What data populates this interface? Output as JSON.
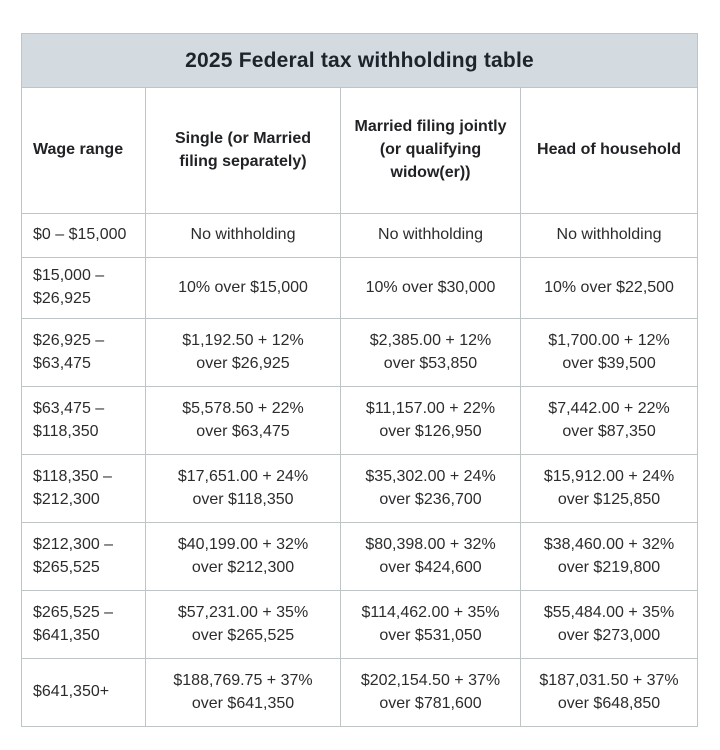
{
  "title": "2025 Federal tax withholding table",
  "colors": {
    "title_band_bg": "#d3dbe0",
    "cell_border": "#bfc4c7",
    "text": "#2a2c2e",
    "page_bg": "#ffffff"
  },
  "chart_data": {
    "type": "table",
    "title": "2025 Federal tax withholding table",
    "columns": [
      "Wage range",
      "Single (or Married\nfiling separately)",
      "Married filing jointly\n(or qualifying\nwidow(er))",
      "Head of household"
    ],
    "rows": [
      [
        "$0 – $15,000",
        "No withholding",
        "No withholding",
        "No withholding"
      ],
      [
        "$15,000 –\n$26,925",
        "10% over $15,000",
        "10% over $30,000",
        "10% over $22,500"
      ],
      [
        "$26,925 –\n$63,475",
        "$1,192.50 + 12%\nover $26,925",
        "$2,385.00 + 12%\nover $53,850",
        "$1,700.00 + 12%\nover $39,500"
      ],
      [
        "$63,475 –\n$118,350",
        "$5,578.50 + 22%\nover $63,475",
        "$11,157.00 + 22%\nover $126,950",
        "$7,442.00 + 22%\nover $87,350"
      ],
      [
        "$118,350 –\n$212,300",
        "$17,651.00 + 24%\nover $118,350",
        "$35,302.00 + 24%\nover $236,700",
        "$15,912.00 + 24%\nover $125,850"
      ],
      [
        "$212,300 –\n$265,525",
        "$40,199.00 + 32%\nover $212,300",
        "$80,398.00 + 32%\nover $424,600",
        "$38,460.00 + 32%\nover $219,800"
      ],
      [
        "$265,525 –\n$641,350",
        "$57,231.00 + 35%\nover $265,525",
        "$114,462.00 + 35%\nover $531,050",
        "$55,484.00 + 35%\nover $273,000"
      ],
      [
        "$641,350+",
        "$188,769.75 + 37%\nover $641,350",
        "$202,154.50 + 37%\nover $781,600",
        "$187,031.50 + 37%\nover $648,850"
      ]
    ]
  }
}
